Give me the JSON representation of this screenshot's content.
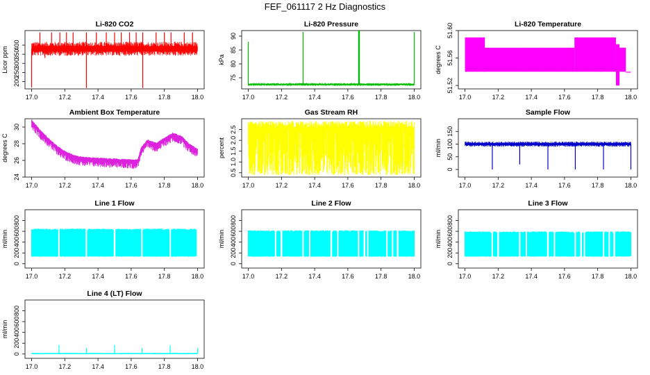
{
  "figure_title": "FEF_061117  2 Hz Diagnostics",
  "chart_data": [
    {
      "type": "line",
      "title": "Li-820 CO2",
      "ylabel": "Licor ppm",
      "color": "#ff0000",
      "xlim": [
        17.0,
        18.0
      ],
      "ylim": [
        160,
        480
      ],
      "yticks": [
        200,
        250,
        300,
        350,
        400
      ],
      "xticks": [
        17.0,
        17.2,
        17.4,
        17.6,
        17.8,
        18.0
      ],
      "base_value": 380,
      "band": [
        365,
        395
      ],
      "events": [
        {
          "x": 17.0,
          "value": 168
        },
        {
          "x": 17.05,
          "value": 470
        },
        {
          "x": 17.08,
          "value": 330
        },
        {
          "x": 17.12,
          "value": 470
        },
        {
          "x": 17.17,
          "value": 470
        },
        {
          "x": 17.21,
          "value": 470
        },
        {
          "x": 17.25,
          "value": 470
        },
        {
          "x": 17.33,
          "value": 165
        },
        {
          "x": 17.33,
          "value": 470
        },
        {
          "x": 17.39,
          "value": 470
        },
        {
          "x": 17.45,
          "value": 470
        },
        {
          "x": 17.5,
          "value": 470
        },
        {
          "x": 17.54,
          "value": 470
        },
        {
          "x": 17.59,
          "value": 470
        },
        {
          "x": 17.63,
          "value": 470
        },
        {
          "x": 17.67,
          "value": 165
        },
        {
          "x": 17.67,
          "value": 470
        },
        {
          "x": 17.75,
          "value": 470
        },
        {
          "x": 17.8,
          "value": 470
        },
        {
          "x": 17.84,
          "value": 470
        },
        {
          "x": 17.92,
          "value": 470
        },
        {
          "x": 17.97,
          "value": 470
        }
      ]
    },
    {
      "type": "line",
      "title": "Li-820 Pressure",
      "ylabel": "kPa",
      "color": "#00bb00",
      "xlim": [
        17.0,
        18.0
      ],
      "ylim": [
        71,
        92
      ],
      "yticks": [
        75,
        80,
        85,
        90
      ],
      "xticks": [
        17.0,
        17.2,
        17.4,
        17.6,
        17.8,
        18.0
      ],
      "base_value": 72.6,
      "band": [
        72.4,
        72.8
      ],
      "events": [
        {
          "x": 17.0,
          "value": 88
        },
        {
          "x": 17.33,
          "value": 91.5
        },
        {
          "x": 17.665,
          "value": 92
        },
        {
          "x": 17.67,
          "value": 92
        },
        {
          "x": 18.0,
          "value": 91.5
        }
      ]
    },
    {
      "type": "line",
      "title": "Li-820 Temperature",
      "ylabel": "degrees C",
      "color": "#ff00ff",
      "xlim": [
        17.0,
        18.0
      ],
      "ylim": [
        51.515,
        51.6
      ],
      "yticks": [
        51.52,
        51.56,
        51.6
      ],
      "xticks": [
        17.0,
        17.2,
        17.4,
        17.6,
        17.8,
        18.0
      ],
      "segments": [
        {
          "x0": 17.0,
          "x1": 17.12,
          "low": 51.54,
          "high": 51.59
        },
        {
          "x0": 17.12,
          "x1": 17.66,
          "low": 51.54,
          "high": 51.575
        },
        {
          "x0": 17.66,
          "x1": 17.91,
          "low": 51.54,
          "high": 51.59
        },
        {
          "x0": 17.91,
          "x1": 17.93,
          "low": 51.52,
          "high": 51.58
        },
        {
          "x0": 17.93,
          "x1": 17.97,
          "low": 51.54,
          "high": 51.575
        },
        {
          "x0": 17.97,
          "x1": 18.0,
          "low": 51.54,
          "high": 51.54
        }
      ]
    },
    {
      "type": "line",
      "title": "Ambient Box Temperature",
      "ylabel": "degrees C",
      "color": "#dd22dd",
      "xlim": [
        17.0,
        18.0
      ],
      "ylim": [
        24,
        31
      ],
      "yticks": [
        24,
        26,
        28,
        30
      ],
      "xticks": [
        17.0,
        17.2,
        17.4,
        17.6,
        17.8,
        18.0
      ],
      "curve": {
        "x": [
          17.0,
          17.05,
          17.1,
          17.15,
          17.2,
          17.25,
          17.3,
          17.4,
          17.5,
          17.6,
          17.64,
          17.66,
          17.7,
          17.75,
          17.8,
          17.85,
          17.9,
          17.95,
          18.0
        ],
        "y": [
          30.8,
          29.6,
          28.6,
          27.7,
          27.0,
          26.6,
          26.3,
          26.2,
          26.1,
          26.0,
          26.0,
          27.5,
          28.4,
          28.0,
          28.6,
          29.2,
          28.9,
          27.9,
          27.3
        ]
      },
      "noise_depth": 1.0
    },
    {
      "type": "line",
      "title": "Gas Stream RH",
      "ylabel": "percent",
      "color": "#ffff00",
      "xlim": [
        17.0,
        18.0
      ],
      "ylim": [
        0.3,
        3.0
      ],
      "yticks": [
        0.5,
        1.0,
        1.5,
        2.0,
        2.5
      ],
      "xticks": [
        17.0,
        17.2,
        17.4,
        17.6,
        17.8,
        18.0
      ],
      "band": [
        0.4,
        2.9
      ]
    },
    {
      "type": "line",
      "title": "Sample Flow",
      "ylabel": "ml/min",
      "color": "#0000cc",
      "xlim": [
        17.0,
        18.0
      ],
      "ylim": [
        -30,
        200
      ],
      "yticks": [
        0,
        50,
        100,
        150
      ],
      "xticks": [
        17.0,
        17.2,
        17.4,
        17.6,
        17.8,
        18.0
      ],
      "base_value": 100,
      "band": [
        96,
        104
      ],
      "events": [
        {
          "x": 17.165,
          "value": 0
        },
        {
          "x": 17.33,
          "value": 20
        },
        {
          "x": 17.5,
          "value": 0
        },
        {
          "x": 17.665,
          "value": 0
        },
        {
          "x": 17.835,
          "value": 0
        },
        {
          "x": 18.0,
          "value": 0
        }
      ]
    },
    {
      "type": "line",
      "title": "Line 1 Flow",
      "ylabel": "ml/min",
      "color": "#00ffff",
      "xlim": [
        17.0,
        18.0
      ],
      "ylim": [
        -80,
        1000
      ],
      "yticks": [
        0,
        200,
        400,
        600,
        800
      ],
      "xticks": [
        17.0,
        17.2,
        17.4,
        17.6,
        17.8,
        18.0
      ],
      "band": [
        130,
        650
      ],
      "gaps": [
        17.165,
        17.33,
        17.5,
        17.665,
        17.835,
        18.0
      ]
    },
    {
      "type": "line",
      "title": "Line 2 Flow",
      "ylabel": "ml/min",
      "color": "#00ffff",
      "xlim": [
        17.0,
        18.0
      ],
      "ylim": [
        -80,
        1000
      ],
      "yticks": [
        0,
        200,
        400,
        600,
        800
      ],
      "xticks": [
        17.0,
        17.2,
        17.4,
        17.6,
        17.8,
        18.0
      ],
      "band": [
        130,
        620
      ],
      "gaps": [
        17.165,
        17.2,
        17.33,
        17.37,
        17.5,
        17.54,
        17.665,
        17.7,
        17.72,
        17.835,
        17.87,
        17.9
      ]
    },
    {
      "type": "line",
      "title": "Line 3 Flow",
      "ylabel": "ml/min",
      "color": "#00ffff",
      "xlim": [
        17.0,
        18.0
      ],
      "ylim": [
        -80,
        1000
      ],
      "yticks": [
        0,
        200,
        400,
        600,
        800
      ],
      "xticks": [
        17.0,
        17.2,
        17.4,
        17.6,
        17.8,
        18.0
      ],
      "band": [
        130,
        600
      ],
      "gaps": [
        17.165,
        17.2,
        17.33,
        17.37,
        17.5,
        17.54,
        17.665,
        17.7,
        17.72,
        17.835,
        17.87,
        17.9
      ]
    },
    {
      "type": "line",
      "title": "Line 4 (LT) Flow",
      "ylabel": "ml/min",
      "color": "#00ffff",
      "xlim": [
        17.0,
        18.0
      ],
      "ylim": [
        -80,
        1000
      ],
      "yticks": [
        0,
        200,
        400,
        600,
        800
      ],
      "xticks": [
        17.0,
        17.2,
        17.4,
        17.6,
        17.8,
        18.0
      ],
      "base_value": 10,
      "band": [
        5,
        15
      ],
      "events": [
        {
          "x": 17.165,
          "value": 170
        },
        {
          "x": 17.33,
          "value": 110
        },
        {
          "x": 17.5,
          "value": 170
        },
        {
          "x": 17.665,
          "value": 110
        },
        {
          "x": 17.835,
          "value": 160
        },
        {
          "x": 18.0,
          "value": 110
        }
      ]
    }
  ]
}
